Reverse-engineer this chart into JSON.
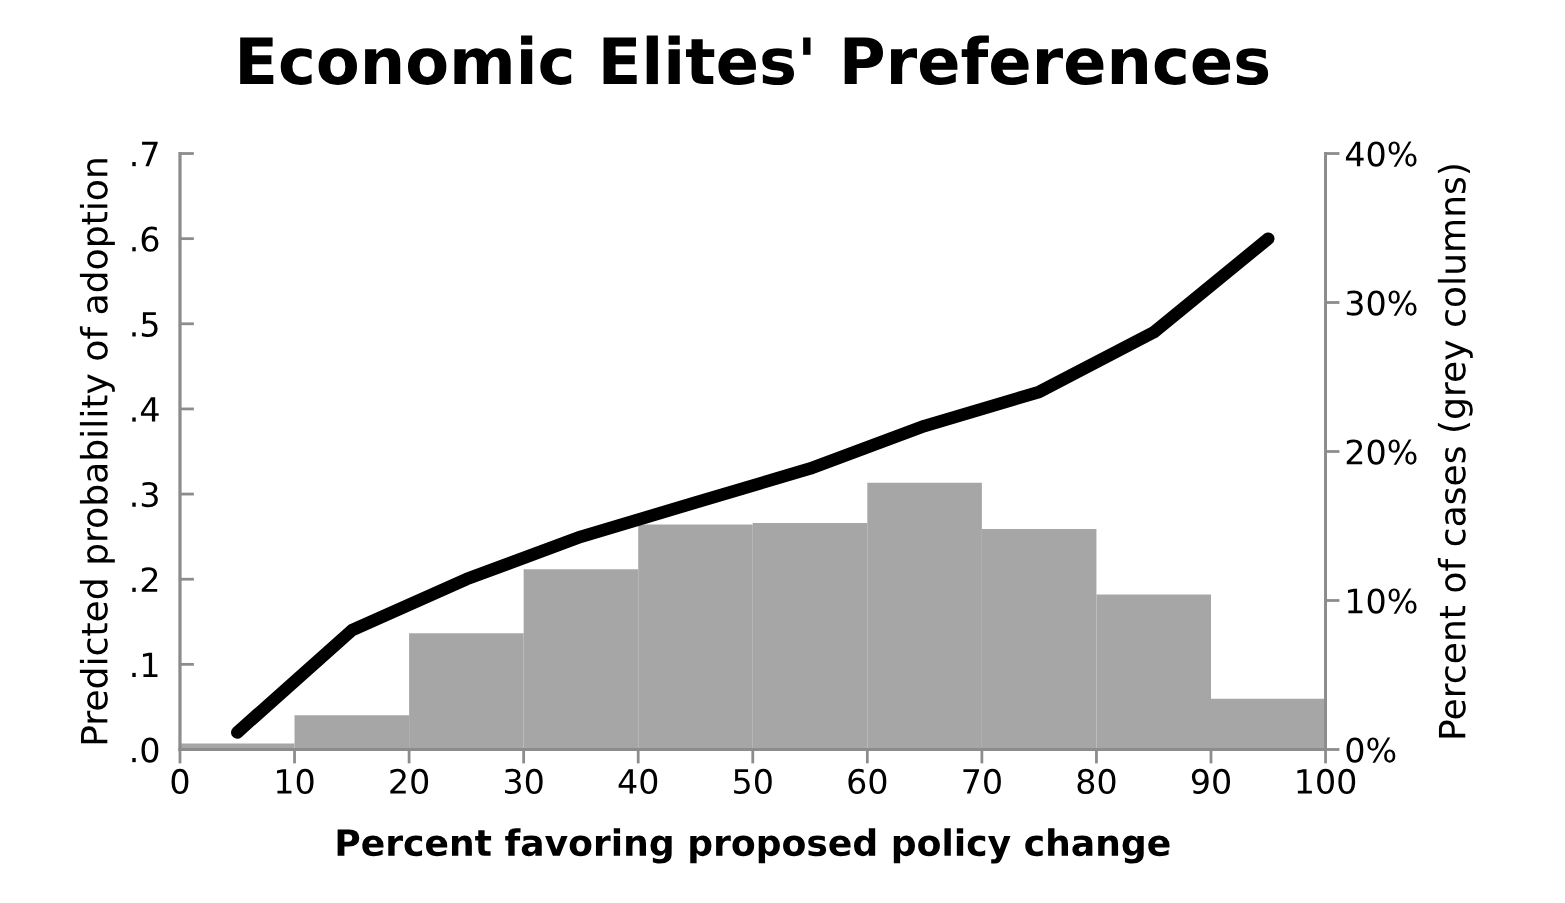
{
  "chart_data": {
    "type": "line",
    "title": "Economic Elites' Preferences",
    "xlabel": "Percent favoring proposed policy change",
    "ylabel": "Predicted probability of adoption",
    "y2label": "Percent of cases (grey columns)",
    "xlim": [
      0,
      100
    ],
    "xticks": [
      0,
      10,
      20,
      30,
      40,
      50,
      60,
      70,
      80,
      90,
      100
    ],
    "ylim": [
      0,
      0.7
    ],
    "yticks": [
      {
        "value": 0,
        "label": ".0"
      },
      {
        "value": 0.1,
        "label": ".1"
      },
      {
        "value": 0.2,
        "label": ".2"
      },
      {
        "value": 0.3,
        "label": ".3"
      },
      {
        "value": 0.4,
        "label": ".4"
      },
      {
        "value": 0.5,
        "label": ".5"
      },
      {
        "value": 0.6,
        "label": ".6"
      },
      {
        "value": 0.7,
        "label": ".7"
      }
    ],
    "y2lim": [
      0,
      40
    ],
    "y2ticks": [
      {
        "value": 0,
        "label": "0%"
      },
      {
        "value": 10,
        "label": "10%"
      },
      {
        "value": 20,
        "label": "20%"
      },
      {
        "value": 30,
        "label": "30%"
      },
      {
        "value": 40,
        "label": "40%"
      }
    ],
    "grid": false,
    "series": [
      {
        "type": "histogram",
        "axis": "y2",
        "color": "#a6a6a6",
        "bins": [
          0,
          10,
          20,
          30,
          40,
          50,
          60,
          70,
          80,
          90,
          100
        ],
        "values": [
          0.4,
          2.3,
          7.8,
          12.1,
          15.1,
          15.2,
          17.9,
          14.8,
          10.4,
          3.4
        ]
      },
      {
        "color": "#000000",
        "x": [
          5,
          15,
          25,
          35,
          45,
          55,
          65,
          75,
          85,
          95
        ],
        "values": [
          0.02,
          0.14,
          0.2,
          0.25,
          0.29,
          0.33,
          0.38,
          0.42,
          0.49,
          0.6
        ]
      }
    ]
  }
}
